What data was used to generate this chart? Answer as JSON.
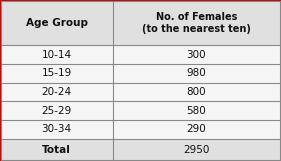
{
  "col1_header": "Age Group",
  "col2_header": "No. of Females\n(to the nearest ten)",
  "rows": [
    [
      "10-14",
      "300"
    ],
    [
      "15-19",
      "980"
    ],
    [
      "20-24",
      "800"
    ],
    [
      "25-29",
      "580"
    ],
    [
      "30-34",
      "290"
    ]
  ],
  "total_label": "Total",
  "total_value": "2950",
  "header_bg": "#e0e0e0",
  "row_bg": "#f5f5f5",
  "total_bg": "#e0e0e0",
  "border_color": "#888888",
  "text_color": "#111111",
  "outer_border_color": "#cc0000"
}
